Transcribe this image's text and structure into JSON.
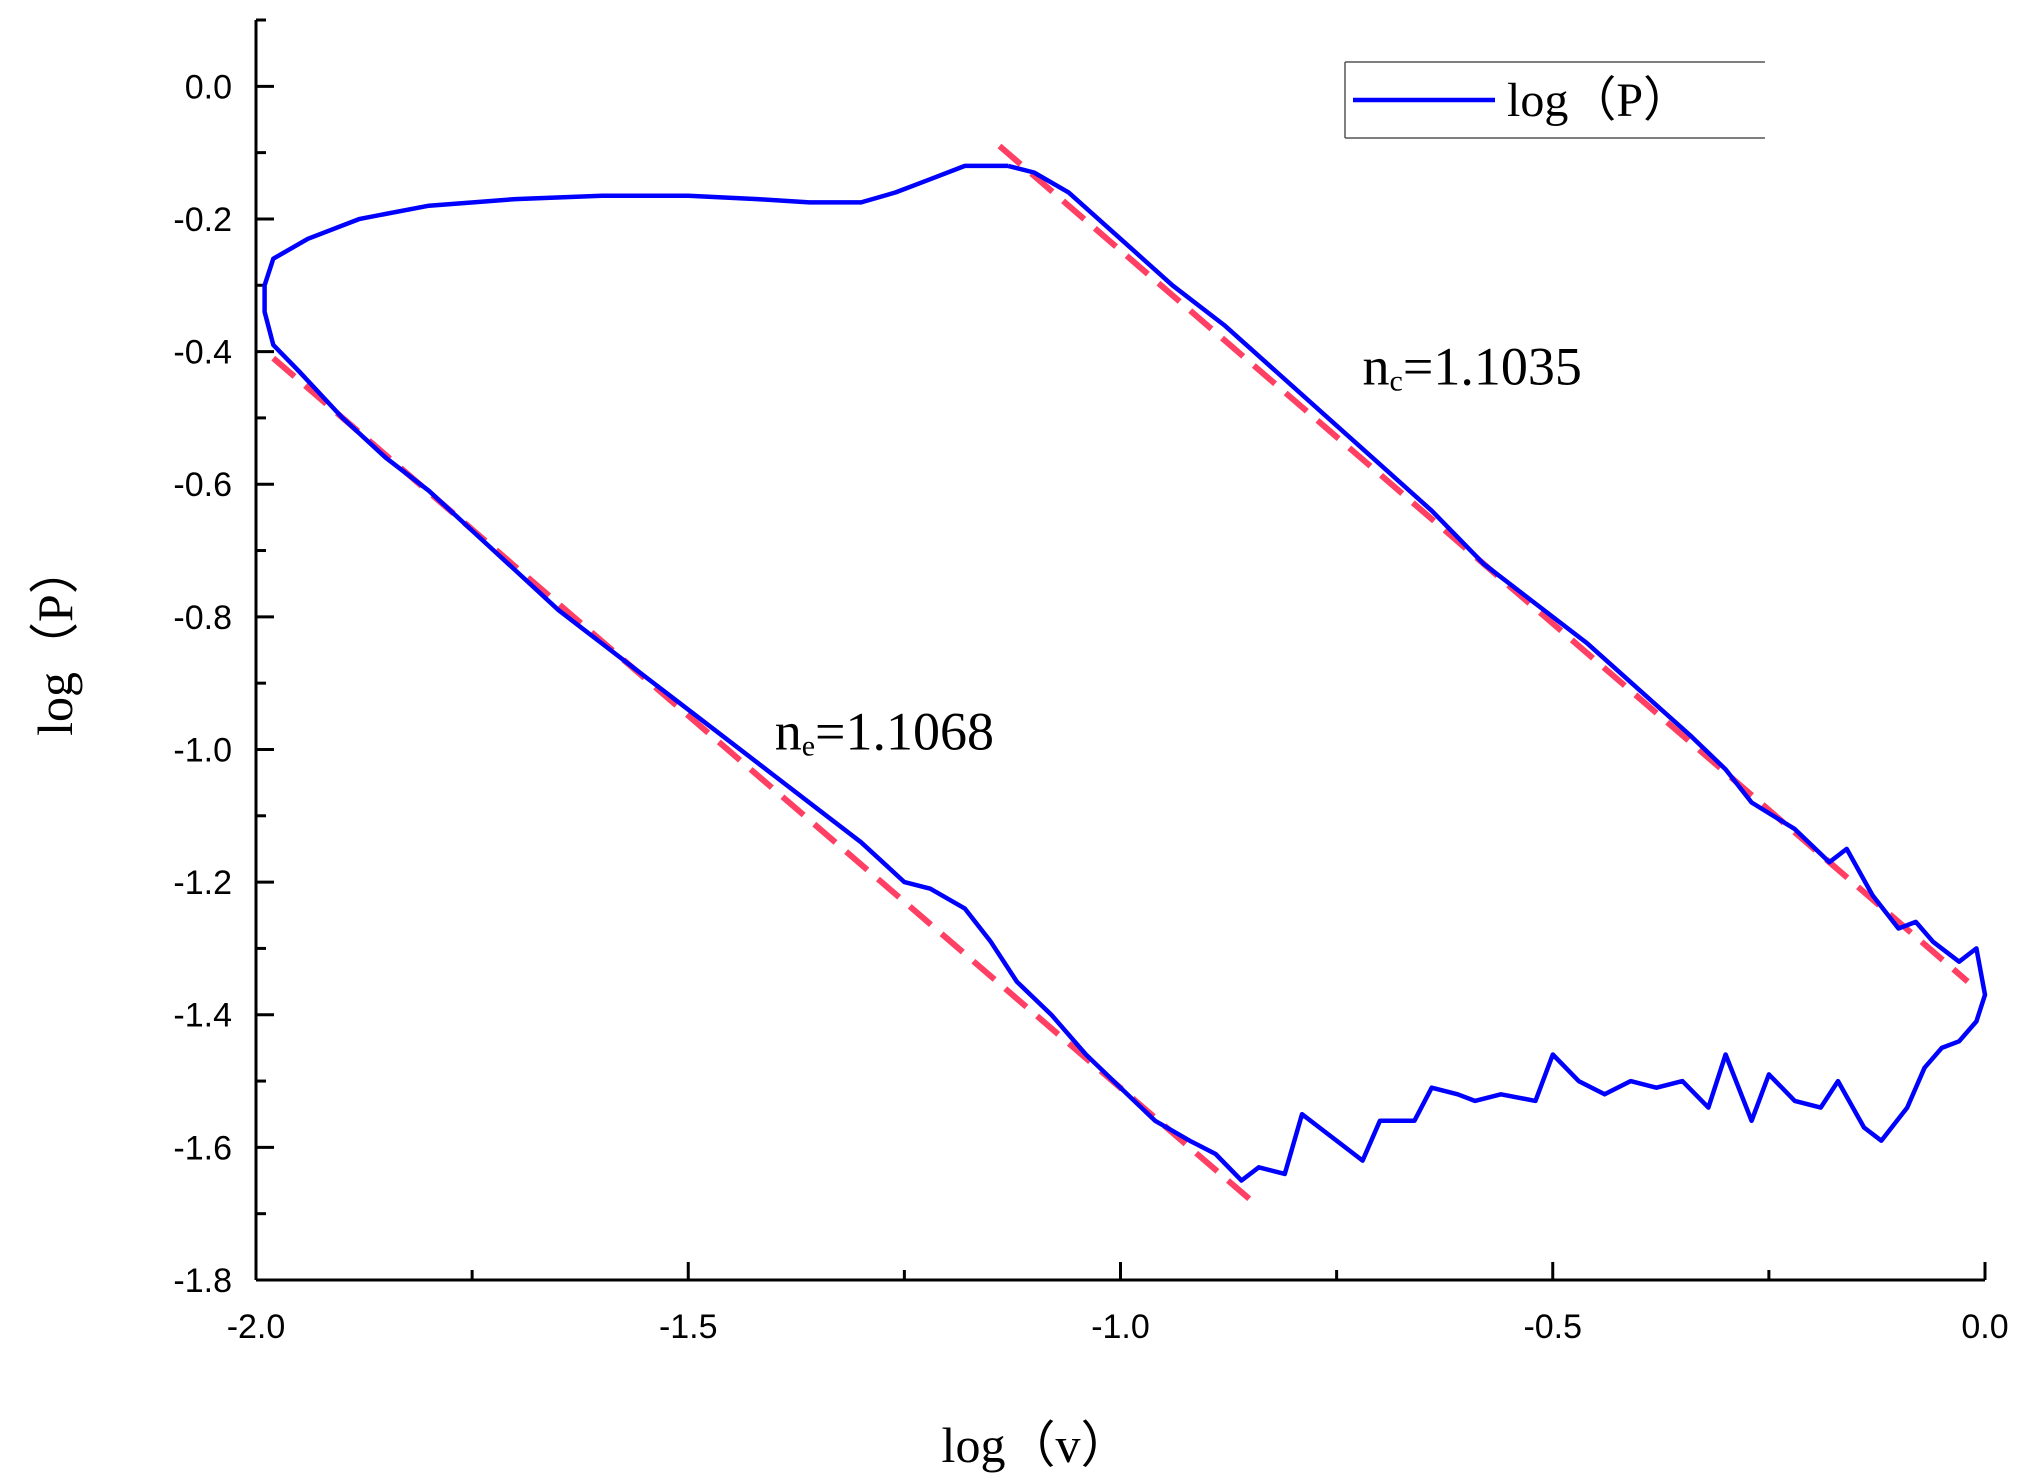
{
  "chart_data": {
    "type": "line",
    "xlabel": "log（v）",
    "ylabel": "log（P）",
    "xlim": [
      -2.0,
      0.0
    ],
    "ylim": [
      -1.8,
      0.1
    ],
    "x_ticks": [
      "-2.0",
      "-1.5",
      "-1.0",
      "-0.5",
      "0.0"
    ],
    "y_ticks": [
      "0.0",
      "-0.2",
      "-0.4",
      "-0.6",
      "-0.8",
      "-1.0",
      "-1.2",
      "-1.4",
      "-1.6",
      "-1.8"
    ],
    "grid": false,
    "legend": {
      "placement": "top-right",
      "entries": [
        "log（P）"
      ]
    },
    "series": [
      {
        "name": "log（P）",
        "color": "#0000ff",
        "points": [
          [
            -1.13,
            -0.12
          ],
          [
            -1.16,
            -0.12
          ],
          [
            -1.18,
            -0.12
          ],
          [
            -1.22,
            -0.14
          ],
          [
            -1.26,
            -0.16
          ],
          [
            -1.3,
            -0.175
          ],
          [
            -1.36,
            -0.175
          ],
          [
            -1.42,
            -0.17
          ],
          [
            -1.5,
            -0.165
          ],
          [
            -1.6,
            -0.165
          ],
          [
            -1.7,
            -0.17
          ],
          [
            -1.8,
            -0.18
          ],
          [
            -1.88,
            -0.2
          ],
          [
            -1.94,
            -0.23
          ],
          [
            -1.98,
            -0.26
          ],
          [
            -1.99,
            -0.3
          ],
          [
            -1.99,
            -0.34
          ],
          [
            -1.98,
            -0.39
          ],
          [
            -1.95,
            -0.43
          ],
          [
            -1.9,
            -0.5
          ],
          [
            -1.85,
            -0.56
          ],
          [
            -1.8,
            -0.61
          ],
          [
            -1.75,
            -0.67
          ],
          [
            -1.7,
            -0.73
          ],
          [
            -1.65,
            -0.79
          ],
          [
            -1.6,
            -0.84
          ],
          [
            -1.55,
            -0.89
          ],
          [
            -1.5,
            -0.94
          ],
          [
            -1.45,
            -0.99
          ],
          [
            -1.4,
            -1.04
          ],
          [
            -1.35,
            -1.09
          ],
          [
            -1.3,
            -1.14
          ],
          [
            -1.25,
            -1.2
          ],
          [
            -1.22,
            -1.21
          ],
          [
            -1.18,
            -1.24
          ],
          [
            -1.15,
            -1.29
          ],
          [
            -1.12,
            -1.35
          ],
          [
            -1.08,
            -1.4
          ],
          [
            -1.04,
            -1.46
          ],
          [
            -1.0,
            -1.51
          ],
          [
            -0.96,
            -1.56
          ],
          [
            -0.92,
            -1.59
          ],
          [
            -0.89,
            -1.61
          ],
          [
            -0.86,
            -1.65
          ],
          [
            -0.84,
            -1.63
          ],
          [
            -0.81,
            -1.64
          ],
          [
            -0.79,
            -1.55
          ],
          [
            -0.76,
            -1.58
          ],
          [
            -0.72,
            -1.62
          ],
          [
            -0.7,
            -1.56
          ],
          [
            -0.66,
            -1.56
          ],
          [
            -0.64,
            -1.51
          ],
          [
            -0.61,
            -1.52
          ],
          [
            -0.59,
            -1.53
          ],
          [
            -0.56,
            -1.52
          ],
          [
            -0.52,
            -1.53
          ],
          [
            -0.5,
            -1.46
          ],
          [
            -0.47,
            -1.5
          ],
          [
            -0.44,
            -1.52
          ],
          [
            -0.41,
            -1.5
          ],
          [
            -0.38,
            -1.51
          ],
          [
            -0.35,
            -1.5
          ],
          [
            -0.32,
            -1.54
          ],
          [
            -0.3,
            -1.46
          ],
          [
            -0.27,
            -1.56
          ],
          [
            -0.25,
            -1.49
          ],
          [
            -0.22,
            -1.53
          ],
          [
            -0.19,
            -1.54
          ],
          [
            -0.17,
            -1.5
          ],
          [
            -0.14,
            -1.57
          ],
          [
            -0.12,
            -1.59
          ],
          [
            -0.09,
            -1.54
          ],
          [
            -0.07,
            -1.48
          ],
          [
            -0.05,
            -1.45
          ],
          [
            -0.03,
            -1.44
          ],
          [
            -0.01,
            -1.41
          ],
          [
            0.0,
            -1.37
          ],
          [
            -0.01,
            -1.3
          ],
          [
            -0.03,
            -1.32
          ],
          [
            -0.06,
            -1.29
          ],
          [
            -0.08,
            -1.26
          ],
          [
            -0.1,
            -1.27
          ],
          [
            -0.13,
            -1.22
          ],
          [
            -0.16,
            -1.15
          ],
          [
            -0.18,
            -1.17
          ],
          [
            -0.22,
            -1.12
          ],
          [
            -0.27,
            -1.08
          ],
          [
            -0.3,
            -1.03
          ],
          [
            -0.34,
            -0.98
          ],
          [
            -0.4,
            -0.91
          ],
          [
            -0.46,
            -0.84
          ],
          [
            -0.52,
            -0.78
          ],
          [
            -0.58,
            -0.72
          ],
          [
            -0.64,
            -0.64
          ],
          [
            -0.7,
            -0.57
          ],
          [
            -0.76,
            -0.5
          ],
          [
            -0.82,
            -0.43
          ],
          [
            -0.88,
            -0.36
          ],
          [
            -0.94,
            -0.3
          ],
          [
            -1.0,
            -0.23
          ],
          [
            -1.06,
            -0.16
          ],
          [
            -1.1,
            -0.13
          ],
          [
            -1.13,
            -0.12
          ]
        ]
      }
    ],
    "fit_lines": [
      {
        "label": "nc=1.1035",
        "color": "#ff2a52",
        "style": "dashed",
        "from": [
          -1.14,
          -0.09
        ],
        "to": [
          -0.02,
          -1.35
        ]
      },
      {
        "label": "ne=1.1068",
        "color": "#ff2a52",
        "style": "dashed",
        "from": [
          -1.98,
          -0.41
        ],
        "to": [
          -0.84,
          -1.69
        ]
      }
    ],
    "annotations": [
      {
        "main": "n",
        "sub": "c",
        "value": "=1.1035",
        "at": [
          -0.72,
          -0.45
        ]
      },
      {
        "main": "n",
        "sub": "e",
        "value": "=1.1068",
        "at": [
          -1.4,
          -1.0
        ]
      }
    ]
  }
}
